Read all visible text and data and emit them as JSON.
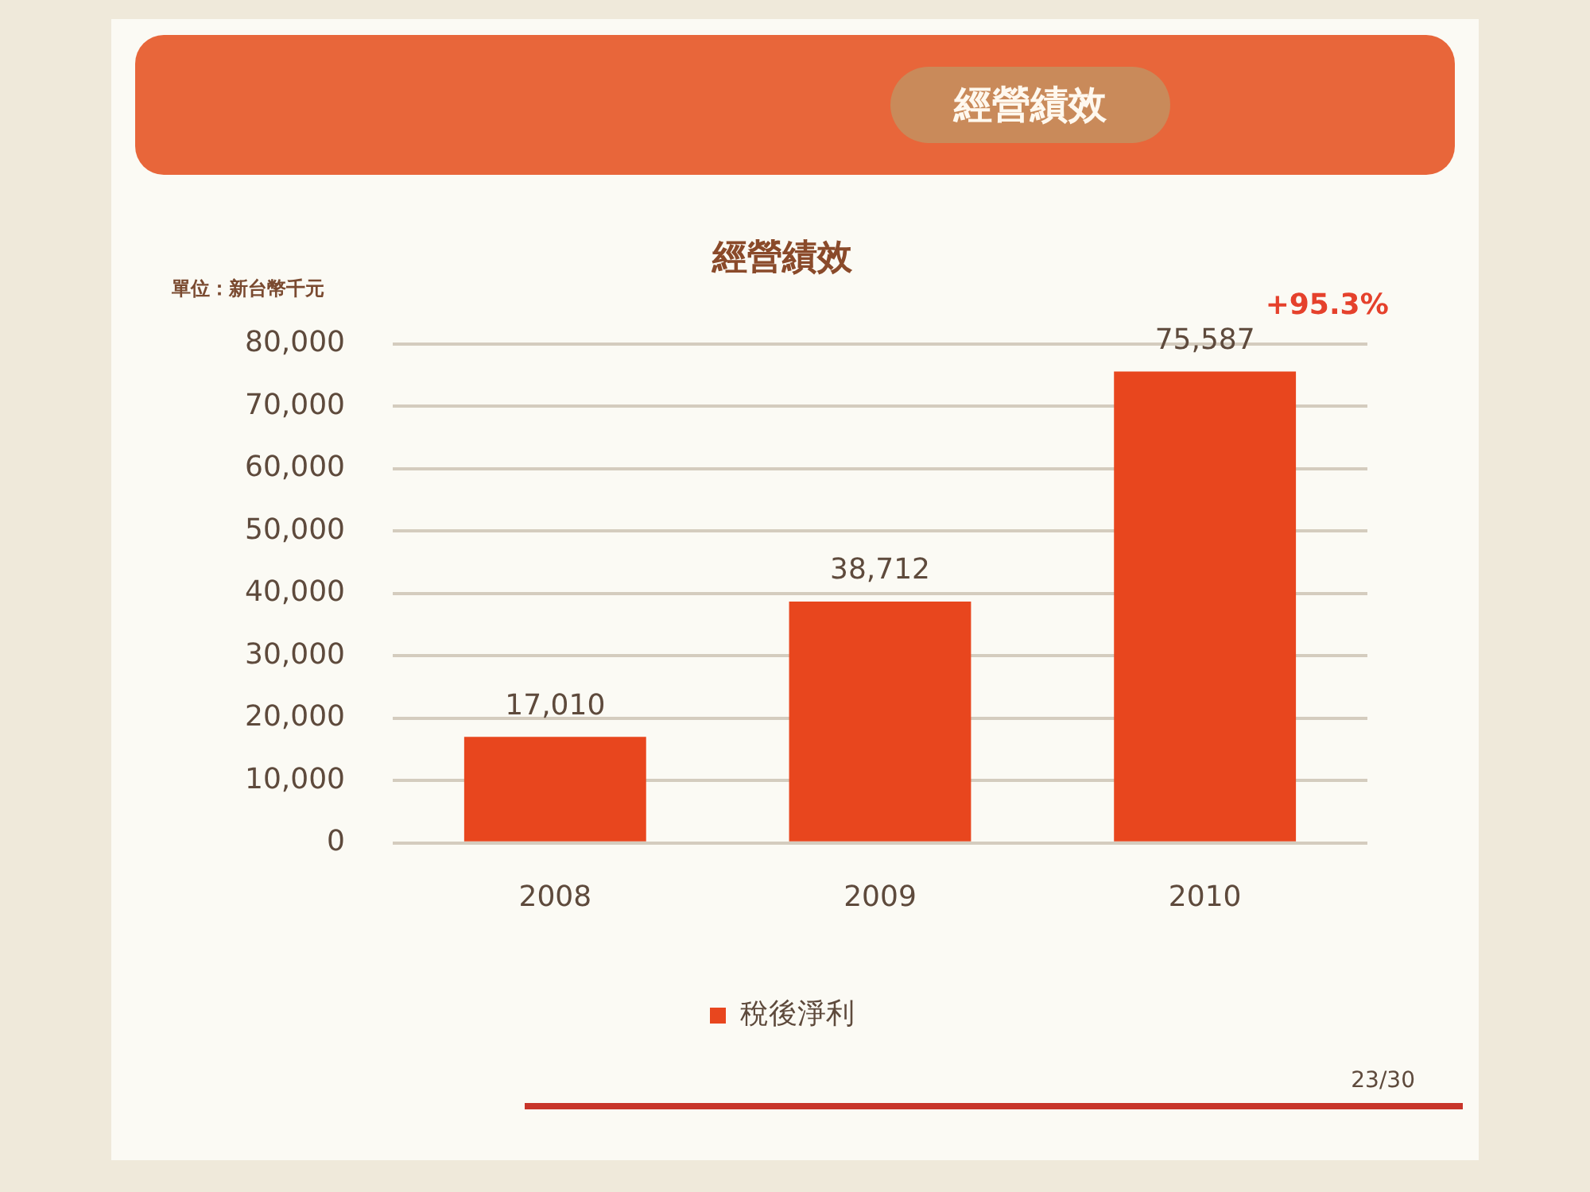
{
  "chart_data": {
    "type": "bar",
    "title": "經營績效",
    "ylabel": "單位：新台幣千元",
    "categories": [
      "2008",
      "2009",
      "2010"
    ],
    "series": [
      {
        "name": "稅後淨利",
        "color": "#e8461e",
        "values": [
          17010,
          38712,
          75587
        ],
        "value_labels": [
          "17,010",
          "38,712",
          "75,587"
        ]
      }
    ],
    "ylim": [
      0,
      80000
    ],
    "yticks": [
      0,
      {
        "value": 10000,
        "label": "10,000"
      },
      {
        "value": 20000,
        "label": "20,000"
      },
      {
        "value": 30000,
        "label": "30,000"
      },
      {
        "value": 40000,
        "label": "40,000"
      },
      {
        "value": 50000,
        "label": "50,000"
      },
      {
        "value": 60000,
        "label": "60,000"
      },
      {
        "value": 70000,
        "label": "70,000"
      },
      {
        "value": 80000,
        "label": "80,000"
      }
    ],
    "grid": "y",
    "legend": "bottom",
    "annotations": [
      "經營績效",
      "23/30",
      {
        "text": "+95.3%",
        "x": "2010",
        "y": 75587
      }
    ]
  }
}
